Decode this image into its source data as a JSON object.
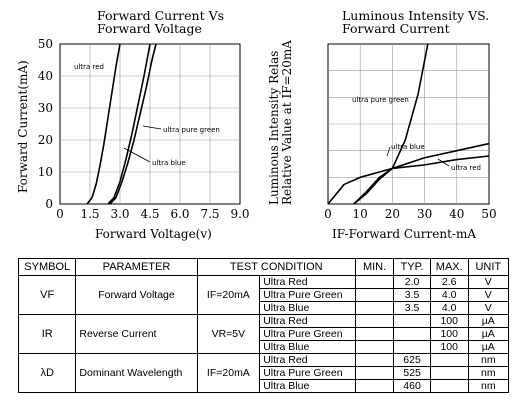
{
  "chart_data": [
    {
      "type": "line",
      "title": "Forward Current Vs",
      "subtitle": "Forward Voltage",
      "xlabel": "Forward Voltage(v)",
      "ylabel": "Forward Current(mA)",
      "xlim": [
        0,
        9.0
      ],
      "ylim": [
        0,
        50
      ],
      "xticks": [
        "0",
        "1.5",
        "3.0",
        "4.5",
        "6.0",
        "7.5",
        "9.0"
      ],
      "yticks": [
        "0",
        "10",
        "20",
        "30",
        "40",
        "50"
      ],
      "grid": true,
      "series": [
        {
          "name": "ultra red",
          "x": [
            1.35,
            1.6,
            1.8,
            2.0,
            2.2,
            2.4,
            2.6,
            2.8,
            3.0
          ],
          "y": [
            0,
            2,
            6,
            12,
            19,
            27,
            35,
            43,
            50
          ]
        },
        {
          "name": "ultra pure green",
          "x": [
            2.4,
            2.7,
            3.0,
            3.3,
            3.6,
            3.9,
            4.2,
            4.5
          ],
          "y": [
            0,
            2,
            7,
            14,
            22,
            31,
            40,
            50
          ]
        },
        {
          "name": "ultra blue",
          "x": [
            2.5,
            2.8,
            3.1,
            3.4,
            3.7,
            4.0,
            4.3,
            4.6,
            4.8
          ],
          "y": [
            0,
            2,
            7,
            13,
            20,
            28,
            36,
            45,
            50
          ]
        }
      ]
    },
    {
      "type": "line",
      "title": "Luminous Intensity VS.",
      "subtitle": "Forward Current",
      "xlabel": "IF-Forward Current-mA",
      "ylabel": "Luminous Intensity Relas",
      "ylabel2": "Relative Value at IF=20mA",
      "xlim": [
        0,
        50
      ],
      "ylim": [
        0,
        4.5
      ],
      "xticks": [
        "0",
        "10",
        "20",
        "30",
        "40",
        "50"
      ],
      "grid": true,
      "series": [
        {
          "name": "ultra pure green",
          "x": [
            8,
            12,
            16,
            20,
            24,
            28,
            31
          ],
          "y": [
            0,
            0.3,
            0.7,
            1.0,
            1.8,
            3.1,
            4.5
          ]
        },
        {
          "name": "ultra blue",
          "x": [
            8,
            12,
            16,
            20,
            30,
            40,
            50
          ],
          "y": [
            0,
            0.35,
            0.75,
            1.0,
            1.3,
            1.5,
            1.7
          ]
        },
        {
          "name": "ultra red",
          "x": [
            0,
            5,
            10,
            20,
            30,
            40,
            50
          ],
          "y": [
            0,
            0.55,
            0.75,
            1.0,
            1.1,
            1.25,
            1.35
          ]
        }
      ]
    }
  ],
  "table": {
    "headers": [
      "SYMBOL",
      "PARAMETER",
      "TEST CONDITION",
      "MIN.",
      "TYP.",
      "MAX.",
      "UNIT"
    ],
    "groups": [
      {
        "symbol": "VF",
        "parameter": "Forward Voltage",
        "condition": "IF=20mA",
        "rows": [
          {
            "color": "Ultra Red",
            "min": "",
            "typ": "2.0",
            "max": "2.6",
            "unit": "V"
          },
          {
            "color": "Ultra Pure Green",
            "min": "",
            "typ": "3.5",
            "max": "4.0",
            "unit": "V"
          },
          {
            "color": "Ultra Blue",
            "min": "",
            "typ": "3.5",
            "max": "4.0",
            "unit": "V"
          }
        ]
      },
      {
        "symbol": "IR",
        "parameter": "Reverse Current",
        "condition": "VR=5V",
        "rows": [
          {
            "color": "Ultra Red",
            "min": "",
            "typ": "",
            "max": "100",
            "unit": "µA"
          },
          {
            "color": "Ultra Pure Green",
            "min": "",
            "typ": "",
            "max": "100",
            "unit": "µA"
          },
          {
            "color": "Ultra Blue",
            "min": "",
            "typ": "",
            "max": "100",
            "unit": "µA"
          }
        ]
      },
      {
        "symbol": "λD",
        "parameter": "Dominant Wavelength",
        "condition": "IF=20mA",
        "rows": [
          {
            "color": "Ultra Red",
            "min": "",
            "typ": "625",
            "max": "",
            "unit": "nm"
          },
          {
            "color": "Ultra Pure Green",
            "min": "",
            "typ": "525",
            "max": "",
            "unit": "nm"
          },
          {
            "color": "Ultra Blue",
            "min": "",
            "typ": "460",
            "max": "",
            "unit": "nm"
          }
        ]
      }
    ]
  }
}
